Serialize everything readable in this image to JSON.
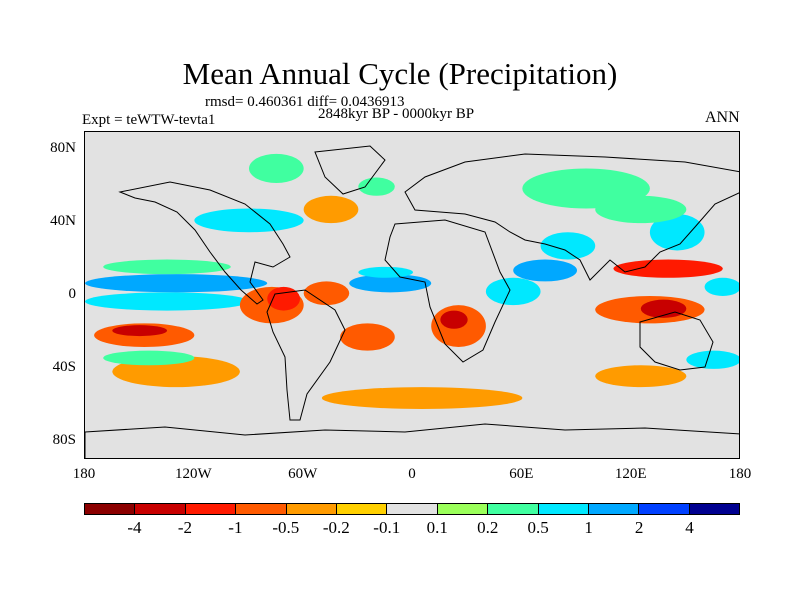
{
  "chart_data": {
    "type": "heatmap",
    "title": "Mean Annual Cycle (Precipitation)",
    "stats": "rmsd= 0.460361 diff= 0.0436913",
    "period": "2848kyr BP - 0000kyr BP",
    "experiment": "Expt = teWTW-tevta1",
    "season": "ANN",
    "x_range": [
      -180,
      180
    ],
    "y_range": [
      -90,
      90
    ],
    "lat_ticks": [
      {
        "value": 80,
        "label": "80N"
      },
      {
        "value": 40,
        "label": "40N"
      },
      {
        "value": 0,
        "label": "0"
      },
      {
        "value": -40,
        "label": "40S"
      },
      {
        "value": -80,
        "label": "80S"
      }
    ],
    "lon_ticks": [
      {
        "value": -180,
        "label": "180"
      },
      {
        "value": -120,
        "label": "120W"
      },
      {
        "value": -60,
        "label": "60W"
      },
      {
        "value": 0,
        "label": "0"
      },
      {
        "value": 60,
        "label": "60E"
      },
      {
        "value": 120,
        "label": "120E"
      },
      {
        "value": 180,
        "label": "180"
      }
    ],
    "colorbar_levels": [
      "-4",
      "-2",
      "-1",
      "-0.5",
      "-0.2",
      "-0.1",
      "0.1",
      "0.2",
      "0.5",
      "1",
      "2",
      "4"
    ],
    "colorbar_colors": [
      "#8b0000",
      "#c80000",
      "#ff1a00",
      "#ff5a00",
      "#ff9b00",
      "#ffd000",
      "#e2e2e2",
      "#9bff5a",
      "#40ffa0",
      "#00e8ff",
      "#00a8ff",
      "#0040ff",
      "#000090"
    ],
    "regions": [
      {
        "lon0": -180,
        "lon1": -80,
        "lat0": 2,
        "lat1": 12,
        "level": 10
      },
      {
        "lon0": -180,
        "lon1": -90,
        "lat0": -8,
        "lat1": 2,
        "level": 9
      },
      {
        "lon0": -170,
        "lon1": -100,
        "lat0": 12,
        "lat1": 20,
        "level": 8
      },
      {
        "lon0": -175,
        "lon1": -120,
        "lat0": -28,
        "lat1": -15,
        "level": 3
      },
      {
        "lon0": -165,
        "lon1": -135,
        "lat0": -22,
        "lat1": -16,
        "level": 1
      },
      {
        "lon0": -165,
        "lon1": -95,
        "lat0": -50,
        "lat1": -33,
        "level": 4
      },
      {
        "lon0": -170,
        "lon1": -120,
        "lat0": -38,
        "lat1": -30,
        "level": 8
      },
      {
        "lon0": -95,
        "lon1": -60,
        "lat0": -15,
        "lat1": 5,
        "level": 3
      },
      {
        "lon0": -80,
        "lon1": -62,
        "lat0": -8,
        "lat1": 5,
        "level": 2
      },
      {
        "lon0": -60,
        "lon1": -35,
        "lat0": -5,
        "lat1": 8,
        "level": 3
      },
      {
        "lon0": -35,
        "lon1": 10,
        "lat0": 2,
        "lat1": 12,
        "level": 10
      },
      {
        "lon0": -30,
        "lon1": 0,
        "lat0": 10,
        "lat1": 16,
        "level": 9
      },
      {
        "lon0": -40,
        "lon1": -10,
        "lat0": -30,
        "lat1": -15,
        "level": 3
      },
      {
        "lon0": -50,
        "lon1": 60,
        "lat0": -62,
        "lat1": -50,
        "level": 4
      },
      {
        "lon0": -120,
        "lon1": -60,
        "lat0": 35,
        "lat1": 48,
        "level": 9
      },
      {
        "lon0": -60,
        "lon1": -30,
        "lat0": 40,
        "lat1": 55,
        "level": 4
      },
      {
        "lon0": -30,
        "lon1": -10,
        "lat0": 55,
        "lat1": 65,
        "level": 8
      },
      {
        "lon0": -90,
        "lon1": -60,
        "lat0": 62,
        "lat1": 78,
        "level": 8
      },
      {
        "lon0": 10,
        "lon1": 40,
        "lat0": -28,
        "lat1": -5,
        "level": 3
      },
      {
        "lon0": 15,
        "lon1": 30,
        "lat0": -18,
        "lat1": -8,
        "level": 1
      },
      {
        "lon0": 40,
        "lon1": 70,
        "lat0": -5,
        "lat1": 10,
        "level": 9
      },
      {
        "lon0": 55,
        "lon1": 90,
        "lat0": 8,
        "lat1": 20,
        "level": 10
      },
      {
        "lon0": 70,
        "lon1": 100,
        "lat0": 20,
        "lat1": 35,
        "level": 9
      },
      {
        "lon0": 110,
        "lon1": 170,
        "lat0": 10,
        "lat1": 20,
        "level": 2
      },
      {
        "lon0": 100,
        "lon1": 160,
        "lat0": -15,
        "lat1": 0,
        "level": 3
      },
      {
        "lon0": 125,
        "lon1": 150,
        "lat0": -12,
        "lat1": -2,
        "level": 1
      },
      {
        "lon0": 130,
        "lon1": 160,
        "lat0": 25,
        "lat1": 45,
        "level": 9
      },
      {
        "lon0": 100,
        "lon1": 150,
        "lat0": 40,
        "lat1": 55,
        "level": 8
      },
      {
        "lon0": 60,
        "lon1": 130,
        "lat0": 48,
        "lat1": 70,
        "level": 8
      },
      {
        "lon0": 100,
        "lon1": 150,
        "lat0": -50,
        "lat1": -38,
        "level": 4
      },
      {
        "lon0": 150,
        "lon1": 180,
        "lat0": -40,
        "lat1": -30,
        "level": 9
      },
      {
        "lon0": 160,
        "lon1": 180,
        "lat0": 0,
        "lat1": 10,
        "level": 9
      }
    ]
  }
}
